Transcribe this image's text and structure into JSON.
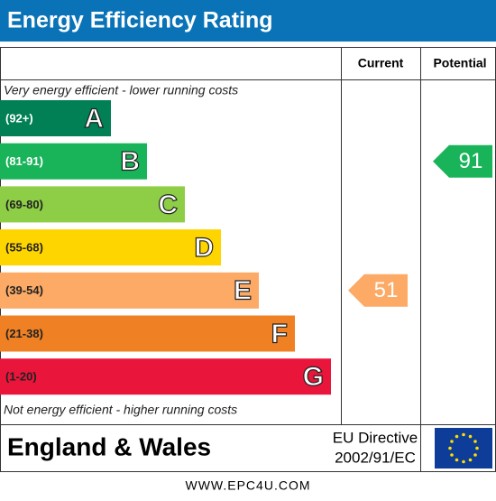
{
  "header": {
    "title": "Energy Efficiency Rating"
  },
  "table": {
    "columns": [
      "Current",
      "Potential"
    ],
    "top_note": "Very energy efficient - lower running costs",
    "bottom_note": "Not energy efficient - higher running costs",
    "bands": [
      {
        "range": "(92+)",
        "letter": "A",
        "color": "#008054"
      },
      {
        "range": "(81-91)",
        "letter": "B",
        "color": "#19b459"
      },
      {
        "range": "(69-80)",
        "letter": "C",
        "color": "#8dce46"
      },
      {
        "range": "(55-68)",
        "letter": "D",
        "color": "#ffd500"
      },
      {
        "range": "(39-54)",
        "letter": "E",
        "color": "#fcaa65"
      },
      {
        "range": "(21-38)",
        "letter": "F",
        "color": "#ef8023"
      },
      {
        "range": "(1-20)",
        "letter": "G",
        "color": "#e9153b"
      }
    ],
    "current": 51,
    "potential": 91
  },
  "footer": {
    "region": "England & Wales",
    "directive": "EU Directive",
    "directive_number": "2002/91/EC"
  },
  "website": "WWW.EPC4U.COM"
}
